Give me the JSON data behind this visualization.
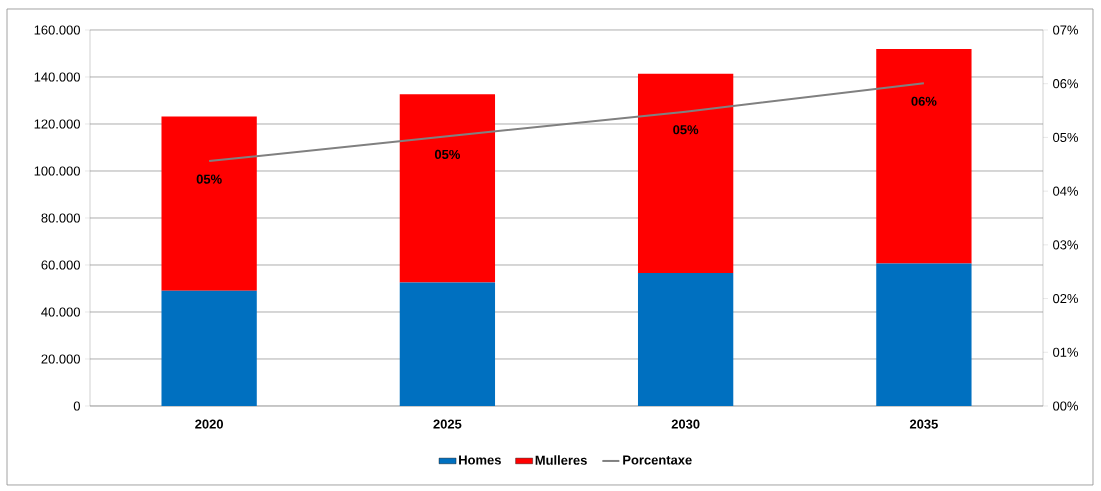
{
  "chart_data": {
    "type": "bar",
    "stacked": true,
    "categories": [
      "2020",
      "2025",
      "2030",
      "2035"
    ],
    "series": [
      {
        "name": "Homes",
        "color": "#0070c0",
        "values": [
          49000,
          52500,
          56600,
          60600
        ]
      },
      {
        "name": "Mulleres",
        "color": "#ff0000",
        "values": [
          74200,
          80100,
          84800,
          91300
        ]
      },
      {
        "name": "Porcentaxe",
        "type": "line",
        "axis": "y2",
        "color": "#808080",
        "values": [
          4.56,
          5.02,
          5.48,
          6.01
        ],
        "value_labels": [
          "05%",
          "05%",
          "05%",
          "06%"
        ]
      }
    ],
    "ylim": [
      0,
      160000
    ],
    "yticks": [
      {
        "value": 0,
        "label": "0"
      },
      {
        "value": 20000,
        "label": "20.000"
      },
      {
        "value": 40000,
        "label": "40.000"
      },
      {
        "value": 60000,
        "label": "60.000"
      },
      {
        "value": 80000,
        "label": "80.000"
      },
      {
        "value": 100000,
        "label": "100.000"
      },
      {
        "value": 120000,
        "label": "120.000"
      },
      {
        "value": 140000,
        "label": "140.000"
      },
      {
        "value": 160000,
        "label": "160.000"
      }
    ],
    "y2lim": [
      0,
      7
    ],
    "y2ticks": [
      {
        "value": 0,
        "label": "00%"
      },
      {
        "value": 1,
        "label": "01%"
      },
      {
        "value": 2,
        "label": "02%"
      },
      {
        "value": 3,
        "label": "03%"
      },
      {
        "value": 4,
        "label": "04%"
      },
      {
        "value": 5,
        "label": "05%"
      },
      {
        "value": 6,
        "label": "06%"
      },
      {
        "value": 7,
        "label": "07%"
      }
    ],
    "grid": "y",
    "legend": "bottom"
  }
}
